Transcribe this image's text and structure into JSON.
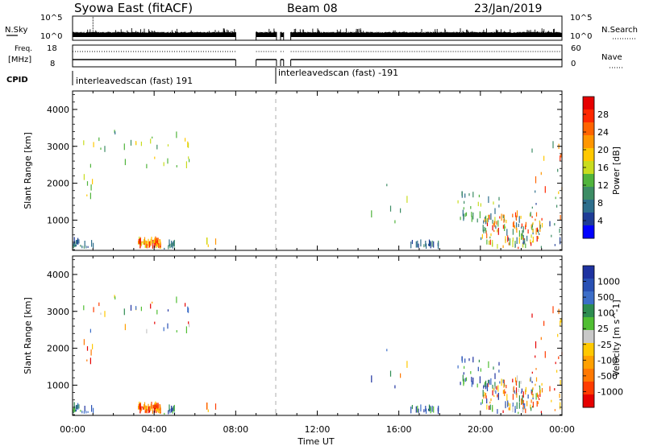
{
  "header": {
    "station": "Syowa East (fitACF)",
    "beam": "Beam 08",
    "date": "23/Jan/2019"
  },
  "status_panels": {
    "nsky_label": "N.Sky",
    "nsky_ticks": [
      "10^5",
      "10^0"
    ],
    "nsearch_label": "N.Search",
    "nsearch_ticks": [
      "10^5",
      "10^0"
    ],
    "freq_label_1": "Freq.",
    "freq_label_2": "[MHz]",
    "freq_ticks": [
      "18",
      "8"
    ],
    "nave_label": "Nave",
    "nave_ticks": [
      "60",
      "0"
    ],
    "cpid_label": "CPID",
    "cpid_segments": [
      {
        "label": "interleavedscan (fast) 191",
        "start_hour": 0,
        "end_hour": 10.0
      },
      {
        "label": "interleavedscan (fast) -191",
        "start_hour": 10.0,
        "end_hour": 24
      }
    ],
    "data_gaps_hours": [
      [
        8.0,
        9.0
      ],
      [
        10.0,
        10.2
      ],
      [
        10.35,
        10.7
      ]
    ]
  },
  "chart_data": [
    {
      "type": "heatmap",
      "name": "power",
      "ylabel": "Slant Range [km]",
      "xlabel": "Time UT",
      "x_ticks": [
        "00:00",
        "04:00",
        "08:00",
        "12:00",
        "16:00",
        "20:00",
        "00:00"
      ],
      "x_range_hours": [
        0,
        24
      ],
      "y_ticks": [
        1000,
        2000,
        3000,
        4000
      ],
      "ylim": [
        180,
        4500
      ],
      "colorbar": {
        "label": "Power [dB]",
        "ticks": [
          "4",
          "8",
          "12",
          "16",
          "20",
          "24",
          "28"
        ],
        "range": [
          0,
          32
        ],
        "colors": [
          "#0000ff",
          "#1e3c96",
          "#2d6e8c",
          "#3c8c64",
          "#50b43c",
          "#c8dc1e",
          "#ffc800",
          "#ff9600",
          "#ff6400",
          "#ff2800",
          "#e60000"
        ]
      }
    },
    {
      "type": "heatmap",
      "name": "velocity",
      "ylabel": "Slant Range [km]",
      "xlabel": "Time UT",
      "x_ticks": [
        "00:00",
        "04:00",
        "08:00",
        "12:00",
        "16:00",
        "20:00",
        "00:00"
      ],
      "x_range_hours": [
        0,
        24
      ],
      "y_ticks": [
        1000,
        2000,
        3000,
        4000
      ],
      "ylim": [
        180,
        4500
      ],
      "colorbar": {
        "label": "Velocity [m s^-1]",
        "ticks": [
          "1000",
          "500",
          "100",
          "25",
          "-25",
          "-100",
          "-500",
          "-1000"
        ],
        "colors": [
          "#1e32a0",
          "#2850b4",
          "#3c6ec8",
          "#2d8c50",
          "#50be32",
          "#c8c8c8",
          "#ffc800",
          "#ffa000",
          "#ff7800",
          "#ff3c00",
          "#e60000"
        ]
      }
    }
  ],
  "scatter_groups": [
    {
      "t": [
        3.2,
        4.3
      ],
      "r": [
        220,
        380
      ],
      "n": 70,
      "pow": [
        14,
        30
      ],
      "vel": "neg"
    },
    {
      "t": [
        0.0,
        0.3
      ],
      "r": [
        220,
        380
      ],
      "n": 10,
      "pow": [
        4,
        12
      ],
      "vel": "pos"
    },
    {
      "t": [
        0.3,
        1.2
      ],
      "r": [
        200,
        300
      ],
      "n": 8,
      "pow": [
        4,
        10
      ],
      "vel": "pos"
    },
    {
      "t": [
        4.3,
        5.0
      ],
      "r": [
        200,
        300
      ],
      "n": 10,
      "pow": [
        6,
        12
      ],
      "vel": "pos"
    },
    {
      "t": [
        6.5,
        7.0
      ],
      "r": [
        250,
        350
      ],
      "n": 4,
      "pow": [
        16,
        22
      ],
      "vel": "neg"
    },
    {
      "t": [
        0.5,
        5.8
      ],
      "r": [
        2400,
        3400
      ],
      "n": 30,
      "pow": [
        8,
        20
      ],
      "vel": "mix"
    },
    {
      "t": [
        0.4,
        1.2
      ],
      "r": [
        1500,
        2400
      ],
      "n": 6,
      "pow": [
        12,
        20
      ],
      "vel": "neg"
    },
    {
      "t": [
        14.0,
        17.0
      ],
      "r": [
        900,
        2000
      ],
      "n": 6,
      "pow": [
        8,
        16
      ],
      "vel": "mix"
    },
    {
      "t": [
        16.5,
        18.0
      ],
      "r": [
        220,
        360
      ],
      "n": 18,
      "pow": [
        4,
        10
      ],
      "vel": "pos"
    },
    {
      "t": [
        18.8,
        21.0
      ],
      "r": [
        900,
        1700
      ],
      "n": 30,
      "pow": [
        6,
        16
      ],
      "vel": "pos"
    },
    {
      "t": [
        20.0,
        23.0
      ],
      "r": [
        220,
        1100
      ],
      "n": 120,
      "pow": [
        4,
        30
      ],
      "vel": "mix"
    },
    {
      "t": [
        22.5,
        24.0
      ],
      "r": [
        220,
        3200
      ],
      "n": 30,
      "pow": [
        4,
        28
      ],
      "vel": "neg"
    }
  ]
}
